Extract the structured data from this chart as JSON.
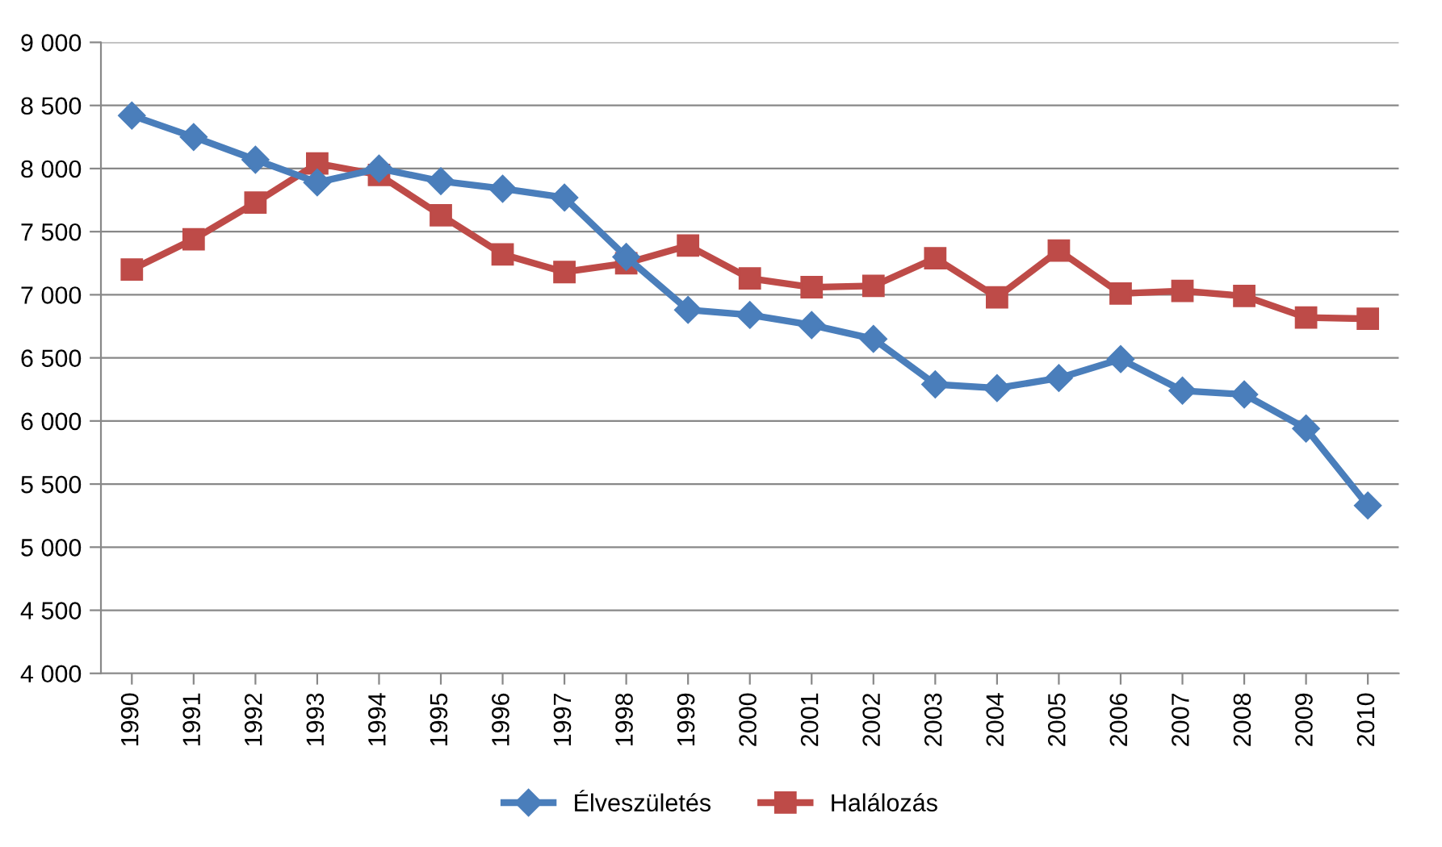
{
  "chart_data": {
    "type": "line",
    "categories": [
      "1990",
      "1991",
      "1992",
      "1993",
      "1994",
      "1995",
      "1996",
      "1997",
      "1998",
      "1999",
      "2000",
      "2001",
      "2002",
      "2003",
      "2004",
      "2005",
      "2006",
      "2007",
      "2008",
      "2009",
      "2010"
    ],
    "series": [
      {
        "name": "Élveszületés",
        "color": "#4a7ebb",
        "marker": "diamond",
        "values": [
          8420,
          8250,
          8070,
          7890,
          8000,
          7900,
          7840,
          7770,
          7300,
          6880,
          6840,
          6760,
          6650,
          6290,
          6260,
          6340,
          6490,
          6240,
          6210,
          5940,
          5330
        ]
      },
      {
        "name": "Halálozás",
        "color": "#be4b48",
        "marker": "square",
        "values": [
          7200,
          7440,
          7730,
          8040,
          7950,
          7630,
          7320,
          7180,
          7250,
          7390,
          7130,
          7060,
          7070,
          7290,
          6980,
          7350,
          7010,
          7030,
          6990,
          6820,
          6810
        ]
      }
    ],
    "ylim": [
      4000,
      9000
    ],
    "yticks": [
      {
        "value": 4000,
        "label": "4 000"
      },
      {
        "value": 4500,
        "label": "4 500"
      },
      {
        "value": 5000,
        "label": "5 000"
      },
      {
        "value": 5500,
        "label": "5 500"
      },
      {
        "value": 6000,
        "label": "6 000"
      },
      {
        "value": 6500,
        "label": "6 500"
      },
      {
        "value": 7000,
        "label": "7 000"
      },
      {
        "value": 7500,
        "label": "7 500"
      },
      {
        "value": 8000,
        "label": "8 000"
      },
      {
        "value": 8500,
        "label": "8 500"
      },
      {
        "value": 9000,
        "label": "9 000"
      }
    ],
    "grid": "y",
    "legend": "bottom",
    "line_style": "solid"
  }
}
